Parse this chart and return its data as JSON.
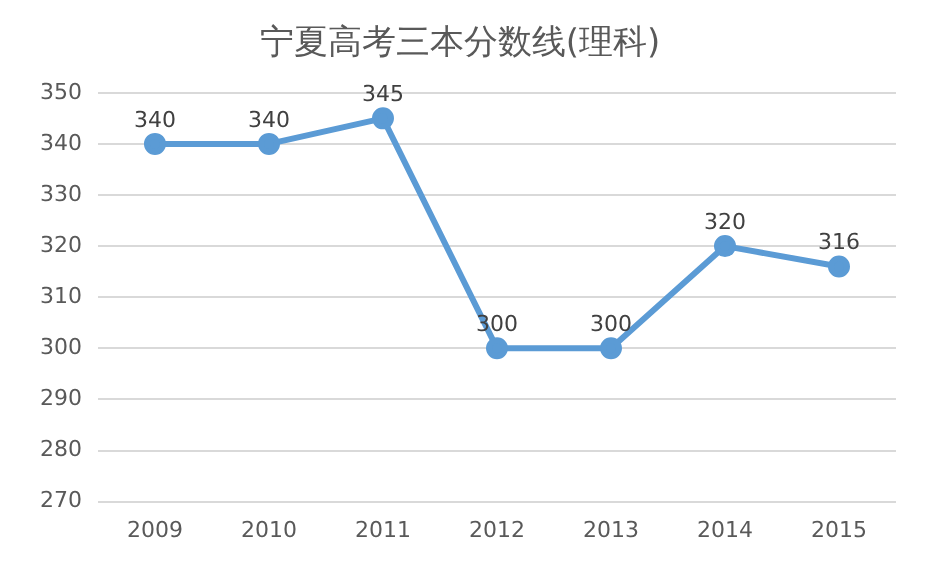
{
  "chart_data": {
    "type": "line",
    "title": "宁夏高考三本分数线(理科)",
    "categories": [
      "2009",
      "2010",
      "2011",
      "2012",
      "2013",
      "2014",
      "2015"
    ],
    "series": [
      {
        "color": "#5b9bd5",
        "values": [
          340,
          340,
          345,
          300,
          300,
          320,
          316
        ]
      }
    ],
    "ylim": [
      270,
      350
    ],
    "yticks": [
      270,
      280,
      290,
      300,
      310,
      320,
      330,
      340,
      350
    ],
    "grid": "y",
    "marker": "circle",
    "data_labels": true,
    "legend": false
  }
}
